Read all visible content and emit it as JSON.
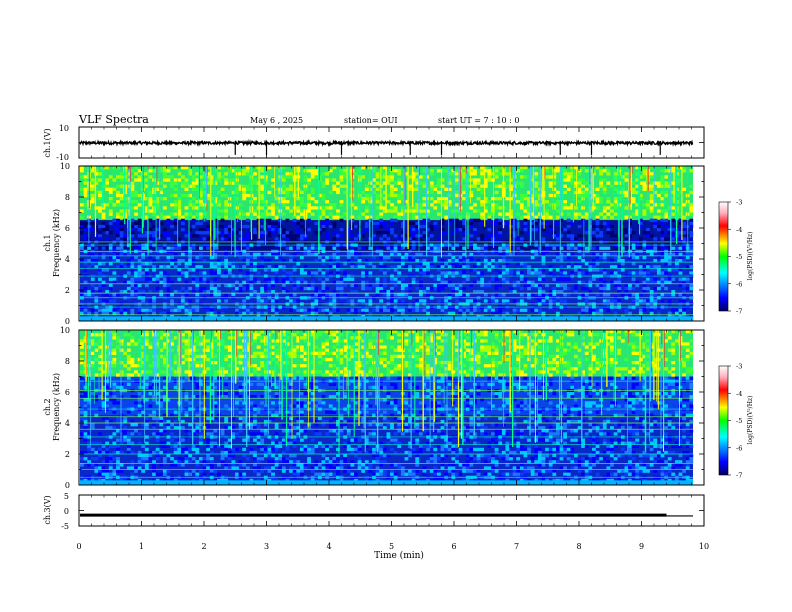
{
  "header": {
    "title": "VLF Spectra",
    "date": "May 6  , 2025",
    "station": "station= OUI",
    "start": "start  UT  =   7  : 10 : 0"
  },
  "chart_data": [
    {
      "type": "line",
      "id": "ch1",
      "ylabel": "ch.1(V)",
      "ylim": [
        -10,
        10
      ],
      "yticks": [
        "10",
        "-10"
      ],
      "xlim": [
        0,
        10
      ],
      "baseline": 0,
      "spikes_at_min": [
        2.5,
        3.0,
        4.2,
        5.3,
        5.8,
        7.7,
        8.2,
        9.3
      ]
    },
    {
      "type": "heatmap",
      "id": "ch1-spec",
      "ylabel": "Frequency  (kHz)",
      "channel": "ch.1",
      "ylim": [
        0,
        10
      ],
      "yticks": [
        "0",
        "2",
        "4",
        "6",
        "8",
        "10"
      ],
      "xlim": [
        0,
        10
      ],
      "colorbar": {
        "label": "log(PSD)(V²/Hz)",
        "range": [
          -7,
          -3
        ],
        "ticks": [
          "-3",
          "-4",
          "-5",
          "-6",
          "-7"
        ]
      }
    },
    {
      "type": "heatmap",
      "id": "ch2-spec",
      "ylabel": "Frequency  (kHz)",
      "channel": "ch.2",
      "ylim": [
        0,
        10
      ],
      "yticks": [
        "0",
        "2",
        "4",
        "6",
        "8",
        "10"
      ],
      "xlim": [
        0,
        10
      ],
      "colorbar": {
        "label": "log(PSD)(V²/Hz)",
        "range": [
          -7,
          -3
        ],
        "ticks": [
          "-3",
          "-4",
          "-5",
          "-6",
          "-7"
        ]
      }
    },
    {
      "type": "line",
      "id": "ch3",
      "ylabel": "ch.3(V)",
      "ylim": [
        -5,
        5
      ],
      "yticks": [
        "5",
        "0",
        "-5"
      ],
      "xlim": [
        0,
        10
      ],
      "level": -1.5,
      "level_end_min": 9.4
    }
  ],
  "xaxis": {
    "label": "Time  (min)",
    "ticks": [
      "0",
      "1",
      "2",
      "3",
      "4",
      "5",
      "6",
      "7",
      "8",
      "9",
      "10"
    ]
  },
  "colors": {
    "scale": [
      "#00008b",
      "#0000ff",
      "#00ffff",
      "#00ff00",
      "#ffff00",
      "#ff0000",
      "#ffc0cb",
      "#ffffff"
    ]
  }
}
